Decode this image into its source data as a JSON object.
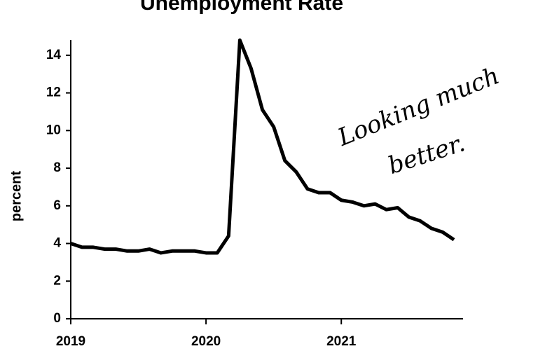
{
  "chart_data": {
    "type": "line",
    "title": "Unemployment Rate",
    "y_label": "percent",
    "annotations": [
      "Looking much",
      "better."
    ],
    "x": [
      2019,
      2019.083,
      2019.167,
      2019.25,
      2019.333,
      2019.417,
      2019.5,
      2019.583,
      2019.667,
      2019.75,
      2019.833,
      2019.917,
      2020,
      2020.083,
      2020.167,
      2020.25,
      2020.333,
      2020.417,
      2020.5,
      2020.583,
      2020.667,
      2020.75,
      2020.833,
      2020.917,
      2021,
      2021.083,
      2021.167,
      2021.25,
      2021.333,
      2021.417,
      2021.5,
      2021.583,
      2021.667,
      2021.75,
      2021.833
    ],
    "series": [
      {
        "name": "Unemployment rate",
        "color": "#000000",
        "values": [
          4.0,
          3.8,
          3.8,
          3.7,
          3.7,
          3.6,
          3.6,
          3.7,
          3.5,
          3.6,
          3.6,
          3.6,
          3.5,
          3.5,
          4.4,
          14.8,
          13.3,
          11.1,
          10.2,
          8.4,
          7.8,
          6.9,
          6.7,
          6.7,
          6.3,
          6.2,
          6.0,
          6.1,
          5.8,
          5.9,
          5.4,
          5.2,
          4.8,
          4.6,
          4.2
        ]
      }
    ],
    "xlim": [
      2019,
      2021.9
    ],
    "xticks": [
      2019,
      2020,
      2021
    ],
    "ylim": [
      0,
      15
    ],
    "yticks": [
      0,
      2,
      4,
      6,
      8,
      10,
      12,
      14
    ],
    "grid": false
  }
}
